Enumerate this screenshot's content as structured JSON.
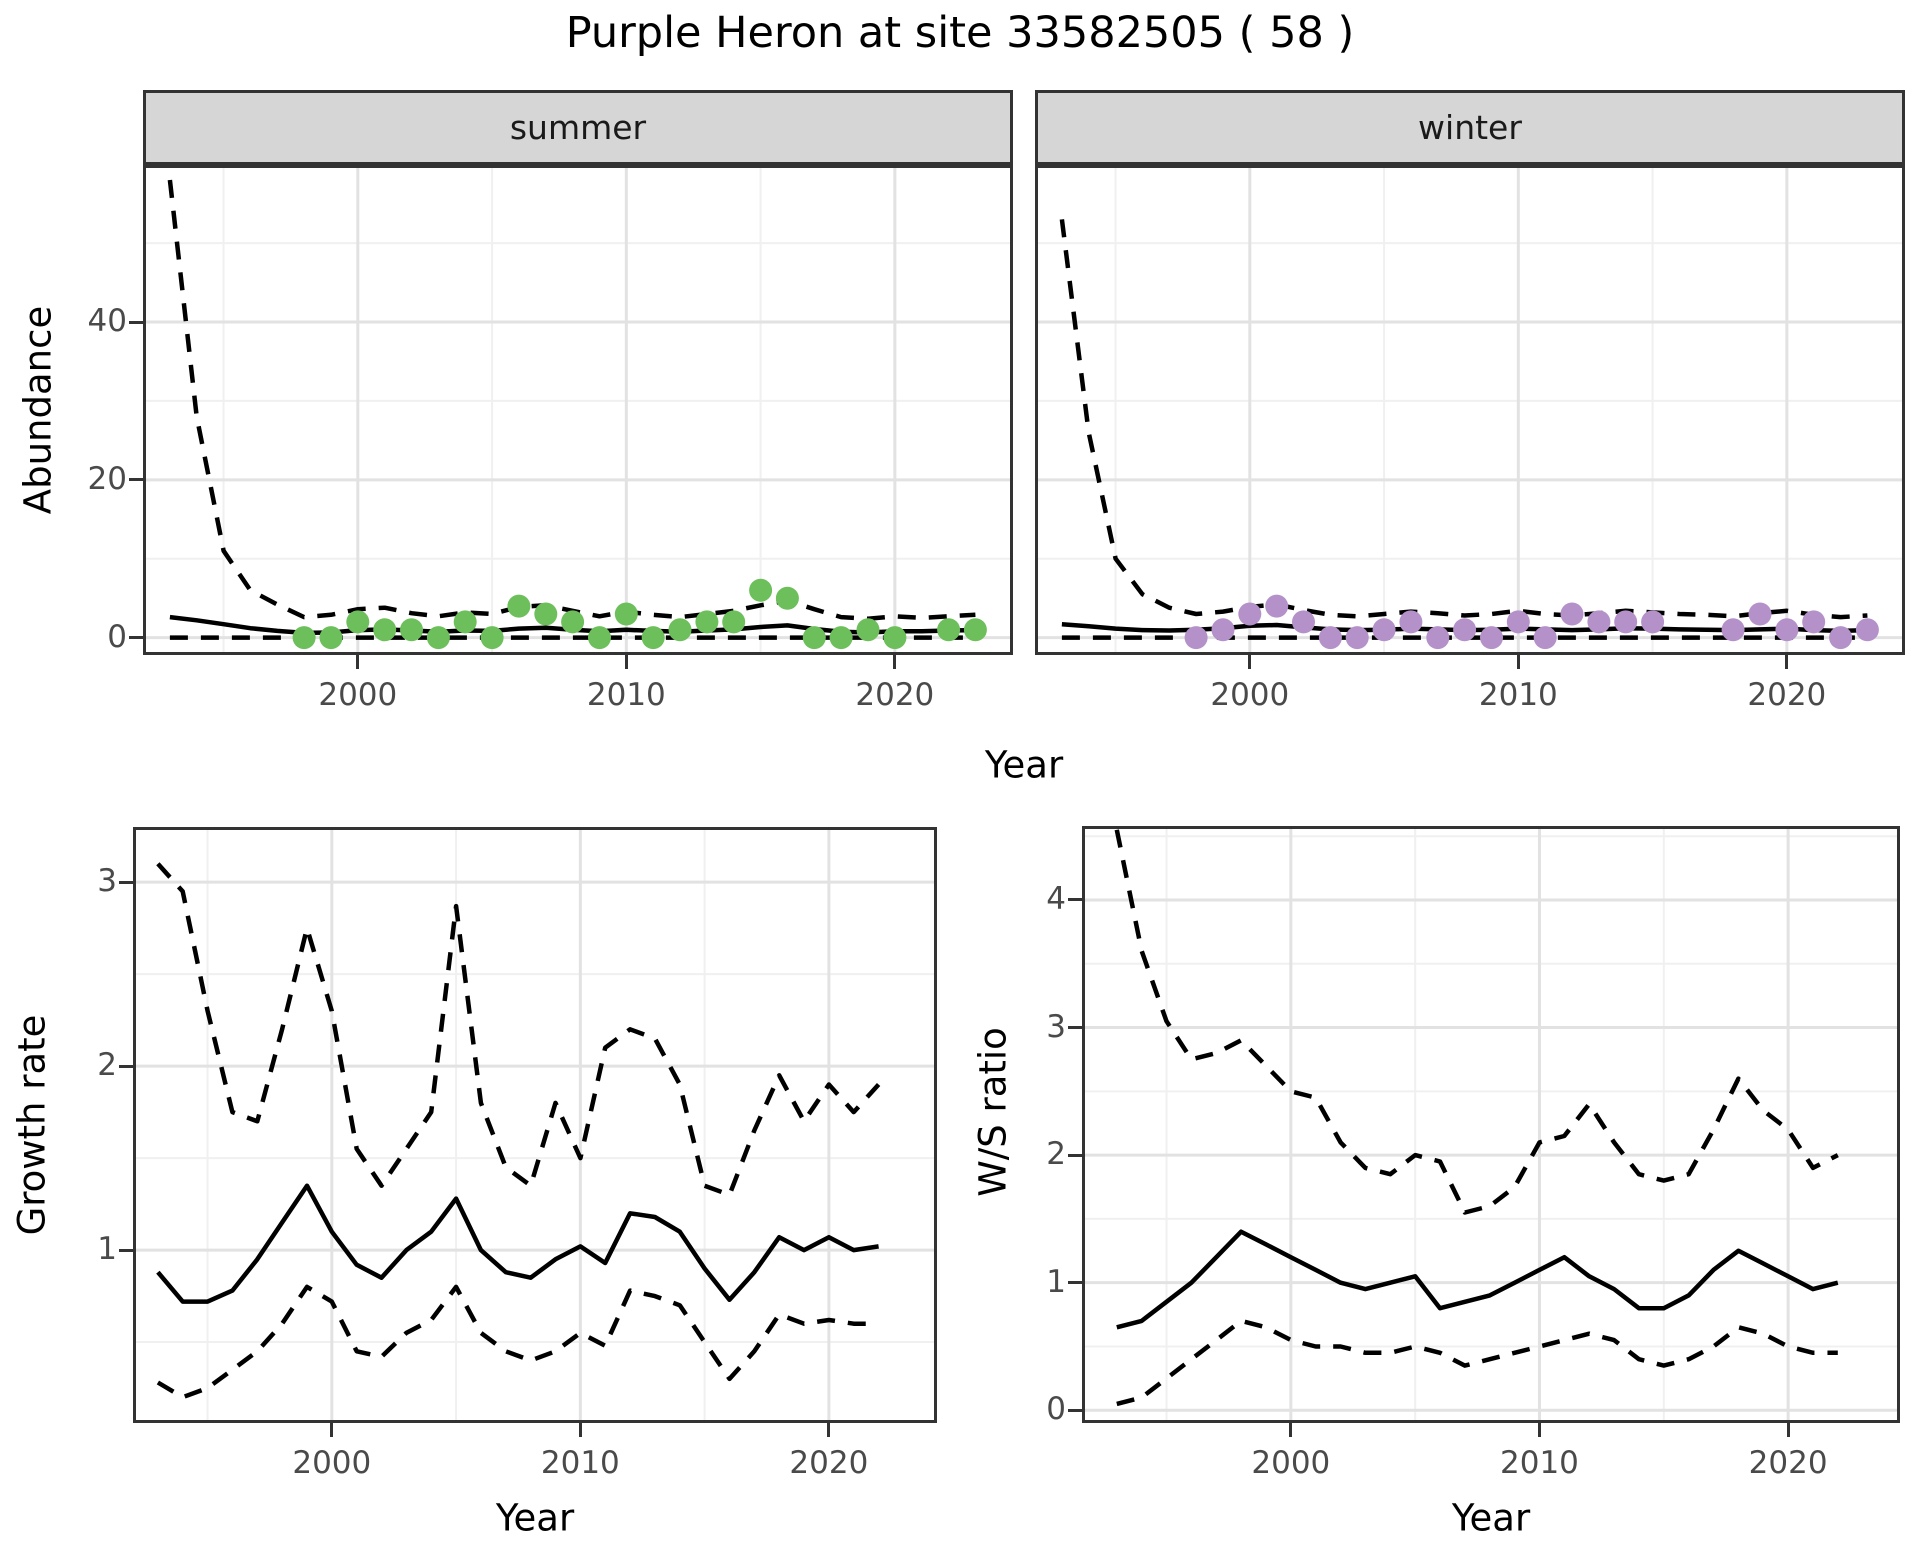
{
  "title": "Purple Heron at site 33582505 ( 58 )",
  "facets": {
    "summer": "summer",
    "winter": "winter"
  },
  "axis_labels": {
    "y_top": "Abundance",
    "x": "Year",
    "y_growth": "Growth rate",
    "y_ws": "W/S ratio"
  },
  "colors": {
    "summer_points": "#6cbf5a",
    "winter_points": "#b491c8",
    "line": "#000000",
    "panel_border": "#333333",
    "grid_major": "#e2e2e2",
    "grid_minor": "#f0f0f0",
    "strip_bg": "#d6d6d6",
    "tick_text": "#4a4a4a"
  },
  "chart_data": [
    {
      "id": "summer",
      "type": "line",
      "facet": "summer",
      "ylabel": "Abundance",
      "xlabel": "Year",
      "xlim": [
        1992.0,
        2024.4
      ],
      "ylim": [
        -2.2,
        59.9
      ],
      "x_ticks": [
        2000,
        2010,
        2020
      ],
      "y_ticks": [
        0,
        20,
        40
      ],
      "grid_x_minor": [
        1995,
        2005,
        2015
      ],
      "grid_y_minor": [
        10,
        30,
        50
      ],
      "x": [
        1993,
        1994,
        1995,
        1996,
        1997,
        1998,
        1999,
        2000,
        2001,
        2002,
        2003,
        2004,
        2005,
        2006,
        2007,
        2008,
        2009,
        2010,
        2011,
        2012,
        2013,
        2014,
        2015,
        2016,
        2017,
        2018,
        2019,
        2020,
        2021,
        2022,
        2023
      ],
      "lines": [
        {
          "name": "upper-ci",
          "style": "dashed",
          "values": [
            58,
            28,
            11,
            6,
            4.2,
            2.6,
            2.9,
            3.6,
            3.8,
            3.1,
            2.7,
            3.2,
            3.0,
            3.9,
            4.1,
            3.4,
            2.7,
            3.3,
            2.9,
            2.6,
            3.0,
            3.4,
            4.1,
            4.7,
            3.6,
            2.6,
            2.4,
            2.7,
            2.5,
            2.7,
            2.9
          ]
        },
        {
          "name": "mean",
          "style": "solid",
          "values": [
            2.6,
            2.2,
            1.7,
            1.2,
            0.85,
            0.6,
            0.65,
            0.95,
            1.05,
            0.9,
            0.75,
            0.9,
            0.85,
            1.15,
            1.25,
            1.0,
            0.8,
            1.0,
            0.85,
            0.75,
            0.9,
            1.05,
            1.35,
            1.55,
            1.1,
            0.75,
            0.65,
            0.8,
            0.8,
            0.9,
            0.95
          ]
        },
        {
          "name": "lower-ci",
          "style": "dashed",
          "values": [
            0,
            0,
            0,
            0,
            0,
            0,
            0,
            0,
            0,
            0,
            0,
            0,
            0,
            0,
            0,
            0,
            0,
            0,
            0,
            0,
            0,
            0,
            0,
            0,
            0,
            0,
            0,
            0,
            0,
            0,
            0
          ]
        }
      ],
      "points": {
        "color": "#6cbf5a",
        "years": [
          1998,
          1999,
          2000,
          2001,
          2002,
          2003,
          2004,
          2005,
          2006,
          2007,
          2008,
          2009,
          2010,
          2011,
          2012,
          2013,
          2014,
          2015,
          2016,
          2017,
          2018,
          2019,
          2020,
          2022,
          2023
        ],
        "values": [
          0,
          0,
          2,
          1,
          1,
          0,
          2,
          0,
          4,
          3,
          2,
          0,
          3,
          0,
          1,
          2,
          2,
          6,
          5,
          0,
          0,
          1,
          0,
          1,
          1
        ]
      }
    },
    {
      "id": "winter",
      "type": "line",
      "facet": "winter",
      "ylabel": "Abundance",
      "xlabel": "Year",
      "xlim": [
        1992.0,
        2024.4
      ],
      "ylim": [
        -2.2,
        59.9
      ],
      "x_ticks": [
        2000,
        2010,
        2020
      ],
      "y_ticks": [],
      "grid_x_minor": [
        1995,
        2005,
        2015
      ],
      "grid_y_minor": [
        10,
        30,
        50
      ],
      "grid_y_major": [
        0,
        20,
        40
      ],
      "x": [
        1993,
        1994,
        1995,
        1996,
        1997,
        1998,
        1999,
        2000,
        2001,
        2002,
        2003,
        2004,
        2005,
        2006,
        2007,
        2008,
        2009,
        2010,
        2011,
        2012,
        2013,
        2014,
        2015,
        2016,
        2017,
        2018,
        2019,
        2020,
        2021,
        2022,
        2023
      ],
      "lines": [
        {
          "name": "upper-ci",
          "style": "dashed",
          "values": [
            53,
            26,
            10,
            5.5,
            3.8,
            3.0,
            3.3,
            3.9,
            4.2,
            3.5,
            2.9,
            2.7,
            3.0,
            3.3,
            3.1,
            2.8,
            3.0,
            3.4,
            3.0,
            2.8,
            3.1,
            3.4,
            3.2,
            3.0,
            2.9,
            2.7,
            3.1,
            3.4,
            2.9,
            2.6,
            2.8
          ]
        },
        {
          "name": "mean",
          "style": "solid",
          "values": [
            1.7,
            1.45,
            1.15,
            0.95,
            0.9,
            1.0,
            1.2,
            1.5,
            1.6,
            1.3,
            1.05,
            0.95,
            1.0,
            1.15,
            1.05,
            0.95,
            1.0,
            1.15,
            1.05,
            0.95,
            1.05,
            1.2,
            1.15,
            1.05,
            1.0,
            0.95,
            1.05,
            1.15,
            0.95,
            0.85,
            0.95
          ]
        },
        {
          "name": "lower-ci",
          "style": "dashed",
          "values": [
            0,
            0,
            0,
            0,
            0,
            0,
            0,
            0,
            0,
            0,
            0,
            0,
            0,
            0,
            0,
            0,
            0,
            0,
            0,
            0,
            0,
            0,
            0,
            0,
            0,
            0,
            0,
            0,
            0,
            0,
            0
          ]
        }
      ],
      "points": {
        "color": "#b491c8",
        "years": [
          1998,
          1999,
          2000,
          2001,
          2002,
          2003,
          2004,
          2005,
          2006,
          2007,
          2008,
          2009,
          2010,
          2011,
          2012,
          2013,
          2014,
          2015,
          2018,
          2019,
          2020,
          2021,
          2022,
          2023
        ],
        "values": [
          0,
          1,
          3,
          4,
          2,
          0,
          0,
          1,
          2,
          0,
          1,
          0,
          2,
          0,
          3,
          2,
          2,
          2,
          1,
          3,
          1,
          2,
          0,
          1
        ]
      }
    },
    {
      "id": "growth",
      "type": "line",
      "facet": null,
      "ylabel": "Growth rate",
      "xlabel": "Year",
      "xlim": [
        1992.0,
        2024.35
      ],
      "ylim": [
        0.06,
        3.3
      ],
      "x_ticks": [
        2000,
        2010,
        2020
      ],
      "y_ticks": [
        1,
        2,
        3
      ],
      "grid_x_minor": [
        1995,
        2005,
        2015
      ],
      "grid_y_minor": [
        0.5,
        1.5,
        2.5
      ],
      "x": [
        1993,
        1994,
        1995,
        1996,
        1997,
        1998,
        1999,
        2000,
        2001,
        2002,
        2003,
        2004,
        2005,
        2006,
        2007,
        2008,
        2009,
        2010,
        2011,
        2012,
        2013,
        2014,
        2015,
        2016,
        2017,
        2018,
        2019,
        2020,
        2021,
        2022
      ],
      "lines": [
        {
          "name": "upper-ci",
          "style": "dashed",
          "values": [
            3.1,
            2.95,
            2.3,
            1.75,
            1.7,
            2.2,
            2.75,
            2.3,
            1.55,
            1.35,
            1.55,
            1.75,
            2.87,
            1.8,
            1.45,
            1.35,
            1.8,
            1.5,
            2.1,
            2.2,
            2.15,
            1.9,
            1.35,
            1.3,
            1.65,
            1.95,
            1.7,
            1.9,
            1.75,
            1.9
          ]
        },
        {
          "name": "mean",
          "style": "solid",
          "values": [
            0.88,
            0.72,
            0.72,
            0.78,
            0.95,
            1.15,
            1.35,
            1.1,
            0.92,
            0.85,
            1.0,
            1.1,
            1.28,
            1.0,
            0.88,
            0.85,
            0.95,
            1.02,
            0.93,
            1.2,
            1.18,
            1.1,
            0.9,
            0.73,
            0.88,
            1.07,
            1.0,
            1.07,
            1.0,
            1.02
          ]
        },
        {
          "name": "lower-ci",
          "style": "dashed",
          "values": [
            0.28,
            0.2,
            0.25,
            0.35,
            0.45,
            0.6,
            0.8,
            0.72,
            0.45,
            0.42,
            0.55,
            0.62,
            0.8,
            0.55,
            0.45,
            0.4,
            0.45,
            0.55,
            0.48,
            0.78,
            0.75,
            0.7,
            0.5,
            0.3,
            0.45,
            0.65,
            0.6,
            0.62,
            0.6,
            0.6
          ]
        }
      ],
      "points": null
    },
    {
      "id": "ws",
      "type": "line",
      "facet": null,
      "ylabel": "W/S ratio",
      "xlabel": "Year",
      "xlim": [
        1991.6,
        2024.5
      ],
      "ylim": [
        -0.1,
        4.58
      ],
      "x_ticks": [
        2000,
        2010,
        2020
      ],
      "y_ticks": [
        0,
        1,
        2,
        3,
        4
      ],
      "grid_x_minor": [
        1995,
        2005,
        2015
      ],
      "grid_y_minor": [
        0.5,
        1.5,
        2.5,
        3.5,
        4.5
      ],
      "x": [
        1993,
        1994,
        1995,
        1996,
        1997,
        1998,
        1999,
        2000,
        2001,
        2002,
        2003,
        2004,
        2005,
        2006,
        2007,
        2008,
        2009,
        2010,
        2011,
        2012,
        2013,
        2014,
        2015,
        2016,
        2017,
        2018,
        2019,
        2020,
        2021,
        2022
      ],
      "lines": [
        {
          "name": "upper-ci",
          "style": "dashed",
          "values": [
            4.55,
            3.6,
            3.05,
            2.75,
            2.8,
            2.9,
            2.7,
            2.5,
            2.45,
            2.1,
            1.9,
            1.85,
            2.0,
            1.95,
            1.55,
            1.6,
            1.75,
            2.1,
            2.15,
            2.4,
            2.1,
            1.85,
            1.8,
            1.85,
            2.2,
            2.6,
            2.35,
            2.2,
            1.9,
            2.0
          ]
        },
        {
          "name": "mean",
          "style": "solid",
          "values": [
            0.65,
            0.7,
            0.85,
            1.0,
            1.2,
            1.4,
            1.3,
            1.2,
            1.1,
            1.0,
            0.95,
            1.0,
            1.05,
            0.8,
            0.85,
            0.9,
            1.0,
            1.1,
            1.2,
            1.05,
            0.95,
            0.8,
            0.8,
            0.9,
            1.1,
            1.25,
            1.15,
            1.05,
            0.95,
            1.0
          ]
        },
        {
          "name": "lower-ci",
          "style": "dashed",
          "values": [
            0.05,
            0.1,
            0.25,
            0.4,
            0.55,
            0.7,
            0.65,
            0.55,
            0.5,
            0.5,
            0.45,
            0.45,
            0.5,
            0.45,
            0.35,
            0.4,
            0.45,
            0.5,
            0.55,
            0.6,
            0.55,
            0.4,
            0.35,
            0.4,
            0.5,
            0.65,
            0.6,
            0.5,
            0.45,
            0.45
          ]
        }
      ],
      "points": null
    }
  ]
}
